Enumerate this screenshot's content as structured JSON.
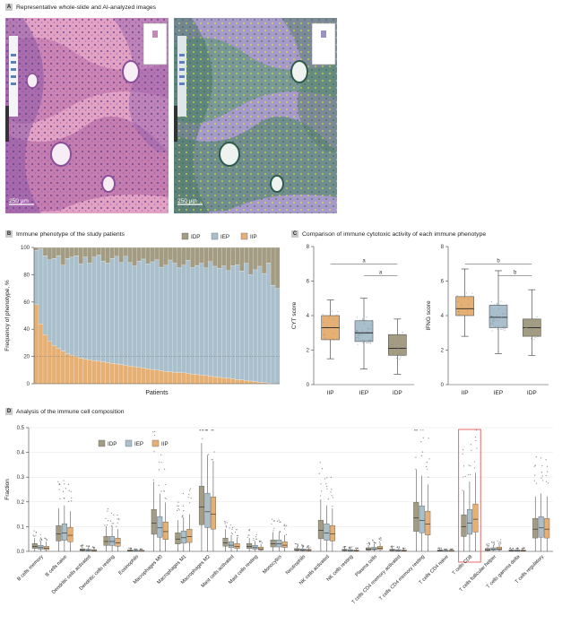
{
  "panelA": {
    "letter": "A",
    "title": "Representative whole-slide and AI-analyzed images",
    "scale_left": "250 μm",
    "scale_right": "250 μm"
  },
  "panelB": {
    "letter": "B",
    "title": "Immune phenotype of the study patients",
    "ylabel": "Frequency of phenotype, %",
    "xlabel": "Patients"
  },
  "panelC": {
    "letter": "C",
    "title": "Comparison of immune cytotoxic activity of each immune phenotype"
  },
  "panelD": {
    "letter": "D",
    "title": "Analysis of the immune cell composition"
  },
  "colors": {
    "IDP": "#a39c82",
    "IEP": "#a9c0cc",
    "IIP": "#e6b074",
    "highlight": "#e35a5a"
  },
  "chart_data": [
    {
      "type": "area",
      "title": "Immune phenotype of the study patients",
      "xlabel": "Patients",
      "ylabel": "Frequency of phenotype, %",
      "ylim": [
        0,
        100
      ],
      "yticks": [
        0,
        20,
        40,
        60,
        80,
        100
      ],
      "legend": {
        "position": "top-right",
        "entries": [
          "IDP",
          "IEP",
          "IIP"
        ]
      },
      "series": [
        {
          "name": "IIP",
          "values": [
            58,
            44,
            36,
            31,
            28,
            26,
            24,
            22,
            21,
            20,
            19,
            18,
            17.5,
            17,
            16.5,
            16,
            15.5,
            15,
            14.5,
            14,
            13.5,
            13,
            12.5,
            12,
            11.5,
            11,
            10.5,
            10,
            9.5,
            9,
            8.8,
            8.5,
            8.2,
            8,
            7.6,
            7.2,
            6.8,
            6.4,
            6,
            5.6,
            5.2,
            4.8,
            4.4,
            4,
            3.6,
            3.2,
            2.8,
            2.4,
            2,
            1.6,
            1.2,
            0.9,
            0.6,
            0.3,
            0
          ]
        },
        {
          "name": "IEP",
          "values": [
            40,
            55,
            58,
            60,
            64,
            68,
            63,
            70,
            72,
            74,
            69,
            75,
            71,
            76,
            78,
            74,
            73,
            77,
            79,
            75,
            80,
            76,
            74,
            78,
            80,
            77,
            79,
            81,
            76,
            78,
            82,
            80,
            77,
            79,
            83,
            78,
            80,
            82,
            79,
            84,
            81,
            80,
            82,
            79,
            83,
            84,
            80,
            86,
            78,
            82,
            85,
            80,
            88,
            72,
            70
          ]
        },
        {
          "name": "IDP",
          "values": [
            2,
            1,
            6,
            9,
            8,
            6,
            13,
            8,
            7,
            6,
            12,
            7,
            11.5,
            7,
            5.5,
            10,
            11.5,
            8,
            6.5,
            11,
            6.5,
            11,
            13.5,
            10,
            8.5,
            12,
            10.5,
            9,
            14.5,
            13,
            9.2,
            11.5,
            14.8,
            13,
            9.4,
            14.8,
            13.2,
            11.6,
            15,
            10.4,
            13.8,
            15.2,
            13.6,
            17,
            13.4,
            12.8,
            17.2,
            11.6,
            20,
            16.4,
            13.8,
            19.1,
            11.4,
            27.7,
            30
          ]
        }
      ]
    },
    {
      "type": "box",
      "ylabel": "CYT score",
      "categories": [
        "IIP",
        "IEP",
        "IDP"
      ],
      "ylim": [
        0,
        8
      ],
      "yticks": [
        0,
        2,
        4,
        6,
        8
      ],
      "boxes": [
        {
          "category": "IIP",
          "min": 1.5,
          "q1": 2.6,
          "median": 3.3,
          "q3": 4.0,
          "max": 4.9
        },
        {
          "category": "IEP",
          "min": 0.9,
          "q1": 2.5,
          "median": 3.0,
          "q3": 3.7,
          "max": 5.0
        },
        {
          "category": "IDP",
          "min": 0.6,
          "q1": 1.7,
          "median": 2.1,
          "q3": 2.9,
          "max": 3.8
        }
      ],
      "annotations": [
        "a",
        "a"
      ]
    },
    {
      "type": "box",
      "ylabel": "IFNG score",
      "categories": [
        "IIP",
        "IEP",
        "IDP"
      ],
      "ylim": [
        0,
        8
      ],
      "yticks": [
        0,
        2,
        4,
        6,
        8
      ],
      "boxes": [
        {
          "category": "IIP",
          "min": 2.8,
          "q1": 4.0,
          "median": 4.4,
          "q3": 5.1,
          "max": 6.7
        },
        {
          "category": "IEP",
          "min": 1.8,
          "q1": 3.3,
          "median": 3.9,
          "q3": 4.6,
          "max": 6.6
        },
        {
          "category": "IDP",
          "min": 1.7,
          "q1": 2.8,
          "median": 3.3,
          "q3": 3.8,
          "max": 5.5
        }
      ],
      "annotations": [
        "b",
        "b"
      ]
    },
    {
      "type": "box",
      "ylabel": "Fraction",
      "ylim": [
        0,
        0.5
      ],
      "yticks": [
        0,
        0.1,
        0.2,
        0.3,
        0.4,
        0.5
      ],
      "legend": {
        "position": "top-left",
        "entries": [
          "IDP",
          "IEP",
          "IIP"
        ]
      },
      "highlight": "T cells CD8",
      "categories": [
        "B cells memory",
        "B cells naive",
        "Dendritic cells activated",
        "Dendritic cells resting",
        "Eosinophils",
        "Macrophages M0",
        "Macrophages M1",
        "Macrophages M2",
        "Mast cells activated",
        "Mast cells resting",
        "Monocytes",
        "Neutrophils",
        "NK cells activated",
        "NK cells resting",
        "Plasma cells",
        "T cells CD4 memory activated",
        "T cells CD4 memory resting",
        "T cells CD4 naive",
        "T cells CD8",
        "T cells follicular helper",
        "T cells gamma delta",
        "T cells regulatory"
      ],
      "series": [
        {
          "name": "IIP",
          "medians": [
            0.012,
            0.065,
            0.003,
            0.035,
            0.001,
            0.08,
            0.06,
            0.15,
            0.02,
            0.01,
            0.025,
            0.004,
            0.07,
            0.002,
            0.012,
            0.002,
            0.11,
            0.001,
            0.13,
            0.01,
            0.002,
            0.09
          ]
        },
        {
          "name": "IEP",
          "medians": [
            0.015,
            0.075,
            0.004,
            0.04,
            0.001,
            0.095,
            0.055,
            0.16,
            0.025,
            0.015,
            0.03,
            0.005,
            0.075,
            0.003,
            0.01,
            0.003,
            0.125,
            0.001,
            0.115,
            0.008,
            0.002,
            0.095
          ]
        },
        {
          "name": "IDP",
          "medians": [
            0.02,
            0.07,
            0.005,
            0.04,
            0.002,
            0.115,
            0.05,
            0.18,
            0.035,
            0.02,
            0.03,
            0.006,
            0.085,
            0.004,
            0.008,
            0.004,
            0.135,
            0.002,
            0.1,
            0.006,
            0.002,
            0.09
          ]
        }
      ]
    }
  ]
}
